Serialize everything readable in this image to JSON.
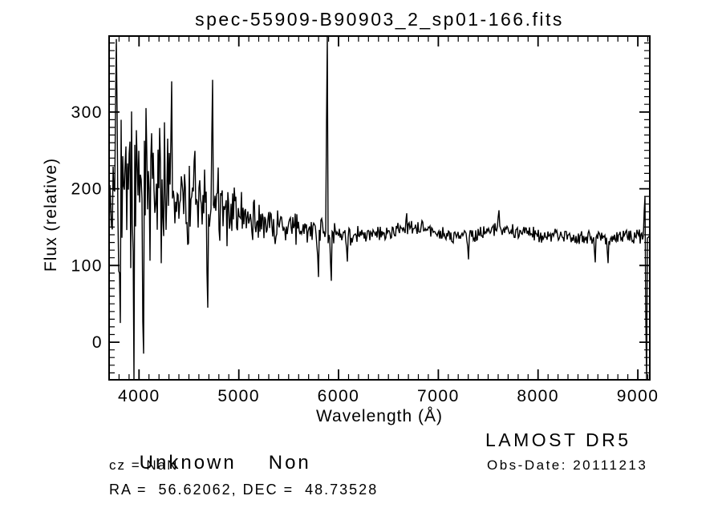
{
  "title": "spec-55909-B90903_2_sp01-166.fits",
  "chart_data": {
    "type": "line",
    "title": "spec-55909-B90903_2_sp01-166.fits",
    "xlabel": "Wavelength (Å)",
    "ylabel": "Flux (relative)",
    "xlim": [
      3700,
      9120
    ],
    "ylim": [
      -49,
      399
    ],
    "xticks": [
      4000,
      5000,
      6000,
      7000,
      8000,
      9000
    ],
    "xtick_minor_interval": 100,
    "yticks": [
      0,
      100,
      200,
      300
    ],
    "ytick_minor_interval": 10,
    "grid": false,
    "legend": "none",
    "line_color": "#000000",
    "background_color": "#ffffff",
    "series_name": "flux",
    "continuum_knots": [
      [
        3700,
        195
      ],
      [
        3800,
        200
      ],
      [
        3950,
        195
      ],
      [
        4100,
        192
      ],
      [
        4250,
        195
      ],
      [
        4400,
        188
      ],
      [
        4550,
        182
      ],
      [
        4700,
        178
      ],
      [
        4850,
        172
      ],
      [
        5000,
        163
      ],
      [
        5150,
        157
      ],
      [
        5300,
        152
      ],
      [
        5450,
        149
      ],
      [
        5600,
        147
      ],
      [
        5750,
        144
      ],
      [
        5900,
        140
      ],
      [
        6050,
        137
      ],
      [
        6200,
        138
      ],
      [
        6350,
        140
      ],
      [
        6500,
        143
      ],
      [
        6650,
        150
      ],
      [
        6800,
        148
      ],
      [
        6950,
        142
      ],
      [
        7100,
        139
      ],
      [
        7300,
        138
      ],
      [
        7500,
        143
      ],
      [
        7610,
        150
      ],
      [
        7750,
        144
      ],
      [
        7900,
        141
      ],
      [
        8100,
        140
      ],
      [
        8300,
        139
      ],
      [
        8500,
        137
      ],
      [
        8700,
        137
      ],
      [
        8900,
        140
      ],
      [
        9120,
        138
      ]
    ],
    "noise_halfwidth_knots": [
      [
        3700,
        155
      ],
      [
        3850,
        165
      ],
      [
        4000,
        140
      ],
      [
        4150,
        115
      ],
      [
        4300,
        100
      ],
      [
        4450,
        85
      ],
      [
        4600,
        70
      ],
      [
        4750,
        58
      ],
      [
        4900,
        48
      ],
      [
        5050,
        38
      ],
      [
        5200,
        30
      ],
      [
        5400,
        26
      ],
      [
        5600,
        23
      ],
      [
        5800,
        21
      ],
      [
        6000,
        18
      ],
      [
        6300,
        15
      ],
      [
        6600,
        13
      ],
      [
        7000,
        12
      ],
      [
        7400,
        11
      ],
      [
        7800,
        11
      ],
      [
        8200,
        11
      ],
      [
        8600,
        12
      ],
      [
        9120,
        13
      ]
    ],
    "spikes": [
      {
        "x": 3770,
        "y": 395
      },
      {
        "x": 3815,
        "y": 25
      },
      {
        "x": 3950,
        "y": -49
      },
      {
        "x": 4045,
        "y": -15
      },
      {
        "x": 4330,
        "y": 340
      },
      {
        "x": 4690,
        "y": 45
      },
      {
        "x": 4735,
        "y": 342
      },
      {
        "x": 5800,
        "y": 85
      },
      {
        "x": 5890,
        "y": 399
      },
      {
        "x": 5925,
        "y": 80
      },
      {
        "x": 6090,
        "y": 105
      },
      {
        "x": 6680,
        "y": 168
      },
      {
        "x": 7300,
        "y": 108
      },
      {
        "x": 7610,
        "y": 172
      },
      {
        "x": 8570,
        "y": 104
      },
      {
        "x": 8700,
        "y": 103
      },
      {
        "x": 9075,
        "y": 190
      },
      {
        "x": 9090,
        "y": -49
      }
    ],
    "noise_seed": 77
  },
  "annotations": {
    "class_label": "Unknown",
    "subclass_label": "Non",
    "cz_line": "cz = NaN",
    "radec_line": "RA =  56.62062, DEC =  48.73528",
    "survey": "LAMOST DR5",
    "obs_date_line": "Obs-Date: 20111213"
  },
  "colors": {
    "foreground": "#000000",
    "background": "#ffffff"
  }
}
